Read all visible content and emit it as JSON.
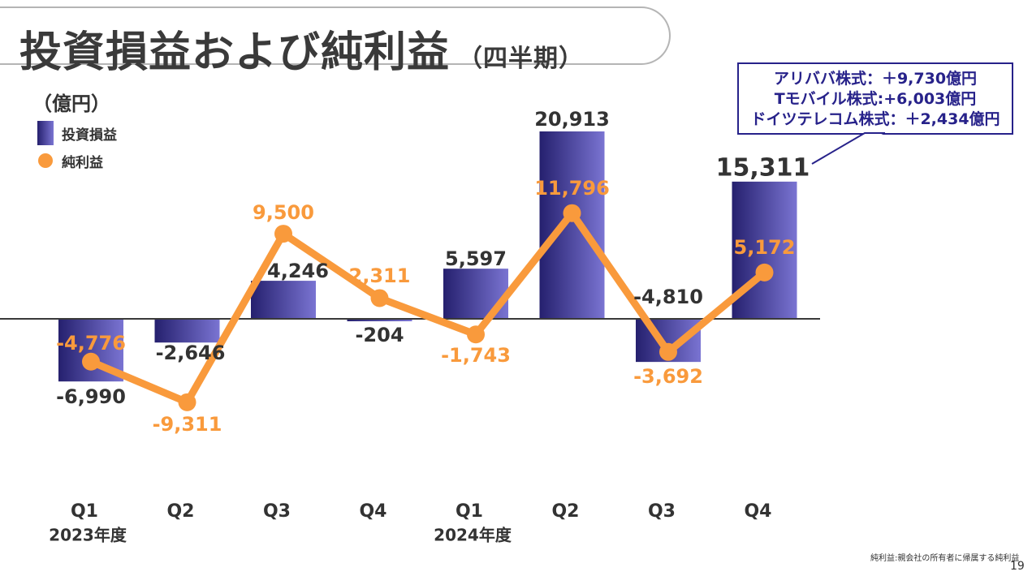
{
  "title": "投資損益および純利益",
  "subtitle": "（四半期）",
  "unit": "（億円）",
  "legend": [
    {
      "name": "投資損益",
      "type": "bar"
    },
    {
      "name": "純利益",
      "type": "line"
    }
  ],
  "callout": [
    "アリババ株式：＋9,730億円",
    "Tモバイル株式:+6,003億円",
    "ドイツテレコム株式：＋2,434億円"
  ],
  "footnote": "純利益:親会社の所有者に帰属する純利益",
  "page_number": "19",
  "colors": {
    "bar_dark": "#25206e",
    "bar_light": "#7a74d2",
    "line": "#f99a3c",
    "line_label": "#f99a3c",
    "callout": "#27228a"
  },
  "chart_data": {
    "type": "bar",
    "categories": [
      "Q1",
      "Q2",
      "Q3",
      "Q4",
      "Q1",
      "Q2",
      "Q3",
      "Q4"
    ],
    "year_labels": [
      {
        "label": "2023年度",
        "index": 0
      },
      {
        "label": "2024年度",
        "index": 4
      }
    ],
    "series": [
      {
        "name": "投資損益",
        "type": "bar",
        "values": [
          -6990,
          -2646,
          4246,
          -204,
          5597,
          20913,
          -4810,
          15311
        ],
        "labels": [
          "-6,990",
          "-2,646",
          "4,246",
          "-204",
          "5,597",
          "20,913",
          "-4,810",
          "15,311"
        ]
      },
      {
        "name": "純利益",
        "type": "line",
        "values": [
          -4776,
          -9311,
          9500,
          2311,
          -1743,
          11796,
          -3692,
          5172
        ],
        "labels": [
          "-4,776",
          "-9,311",
          "9,500",
          "2,311",
          "-1,743",
          "11,796",
          "-3,692",
          "5,172"
        ]
      }
    ],
    "ylim": [
      -20000,
      26000
    ],
    "grid": false,
    "legend_position": "top-left"
  }
}
